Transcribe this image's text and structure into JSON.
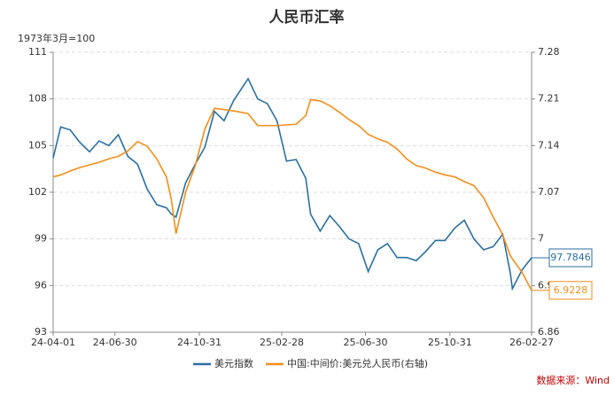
{
  "chart_data": {
    "type": "line",
    "title": "人民币汇率",
    "y_label": "1973年3月=100",
    "x": [
      "24-04-01",
      "24-04-12",
      "24-04-26",
      "24-05-10",
      "24-05-24",
      "24-06-07",
      "24-06-21",
      "24-07-05",
      "24-07-19",
      "24-08-02",
      "24-08-16",
      "24-08-30",
      "24-09-13",
      "24-09-20",
      "24-09-27",
      "24-10-11",
      "24-10-25",
      "24-11-08",
      "24-11-22",
      "24-12-06",
      "24-12-20",
      "25-01-10",
      "25-01-24",
      "25-02-07",
      "25-02-21",
      "25-03-07",
      "25-03-21",
      "25-04-04",
      "25-04-11",
      "25-04-25",
      "25-05-09",
      "25-05-23",
      "25-06-06",
      "25-06-20",
      "25-07-04",
      "25-07-18",
      "25-08-01",
      "25-08-15",
      "25-08-29",
      "25-09-12",
      "25-09-26",
      "25-10-10",
      "25-10-24",
      "25-11-07",
      "25-11-21",
      "25-12-05",
      "25-12-19",
      "26-01-02",
      "26-01-16",
      "26-01-27",
      "26-01-30",
      "26-02-13",
      "26-02-27"
    ],
    "xlim": [
      "24-04-01",
      "26-02-27"
    ],
    "xticks": [
      "24-04-01",
      "24-06-30",
      "24-10-31",
      "25-02-28",
      "25-06-30",
      "25-10-31",
      "26-02-27"
    ],
    "ylim": [
      93,
      111
    ],
    "yticks": [
      93,
      96,
      99,
      102,
      105,
      108,
      111
    ],
    "y2lim": [
      6.86,
      7.28
    ],
    "y2ticks": [
      6.86,
      6.93,
      7,
      7.07,
      7.14,
      7.21,
      7.28
    ],
    "grid": true,
    "legend": "bottom",
    "series": [
      {
        "name": "美元指数",
        "color": "#2b6f9f",
        "values": [
          104.2,
          106.2,
          106.0,
          105.2,
          104.6,
          105.3,
          105.0,
          105.7,
          104.3,
          103.8,
          102.2,
          101.2,
          101.0,
          100.6,
          100.4,
          102.6,
          103.8,
          104.9,
          107.2,
          106.6,
          107.9,
          109.3,
          108.0,
          107.7,
          106.6,
          104.0,
          104.1,
          102.9,
          100.6,
          99.5,
          100.5,
          99.8,
          99.0,
          98.7,
          96.9,
          98.3,
          98.7,
          97.8,
          97.8,
          97.6,
          98.2,
          98.9,
          98.9,
          99.7,
          100.2,
          99.0,
          98.3,
          98.5,
          99.3,
          96.8,
          95.8,
          97.0,
          97.7846
        ]
      },
      {
        "name": "中国:中间价:美元兑人民币(右轴)",
        "color": "#f28e1c",
        "axis": "y2",
        "values": [
          7.093,
          7.096,
          7.102,
          7.107,
          7.111,
          7.115,
          7.12,
          7.124,
          7.132,
          7.146,
          7.139,
          7.12,
          7.093,
          7.06,
          7.008,
          7.07,
          7.11,
          7.165,
          7.196,
          7.194,
          7.192,
          7.188,
          7.17,
          7.17,
          7.17,
          7.171,
          7.172,
          7.185,
          7.209,
          7.207,
          7.2,
          7.19,
          7.179,
          7.17,
          7.157,
          7.15,
          7.145,
          7.135,
          7.12,
          7.11,
          7.106,
          7.1,
          7.096,
          7.093,
          7.086,
          7.08,
          7.062,
          7.033,
          7.006,
          6.975,
          6.97,
          6.95,
          6.9228
        ]
      }
    ],
    "source": "数据来源：Wind"
  }
}
